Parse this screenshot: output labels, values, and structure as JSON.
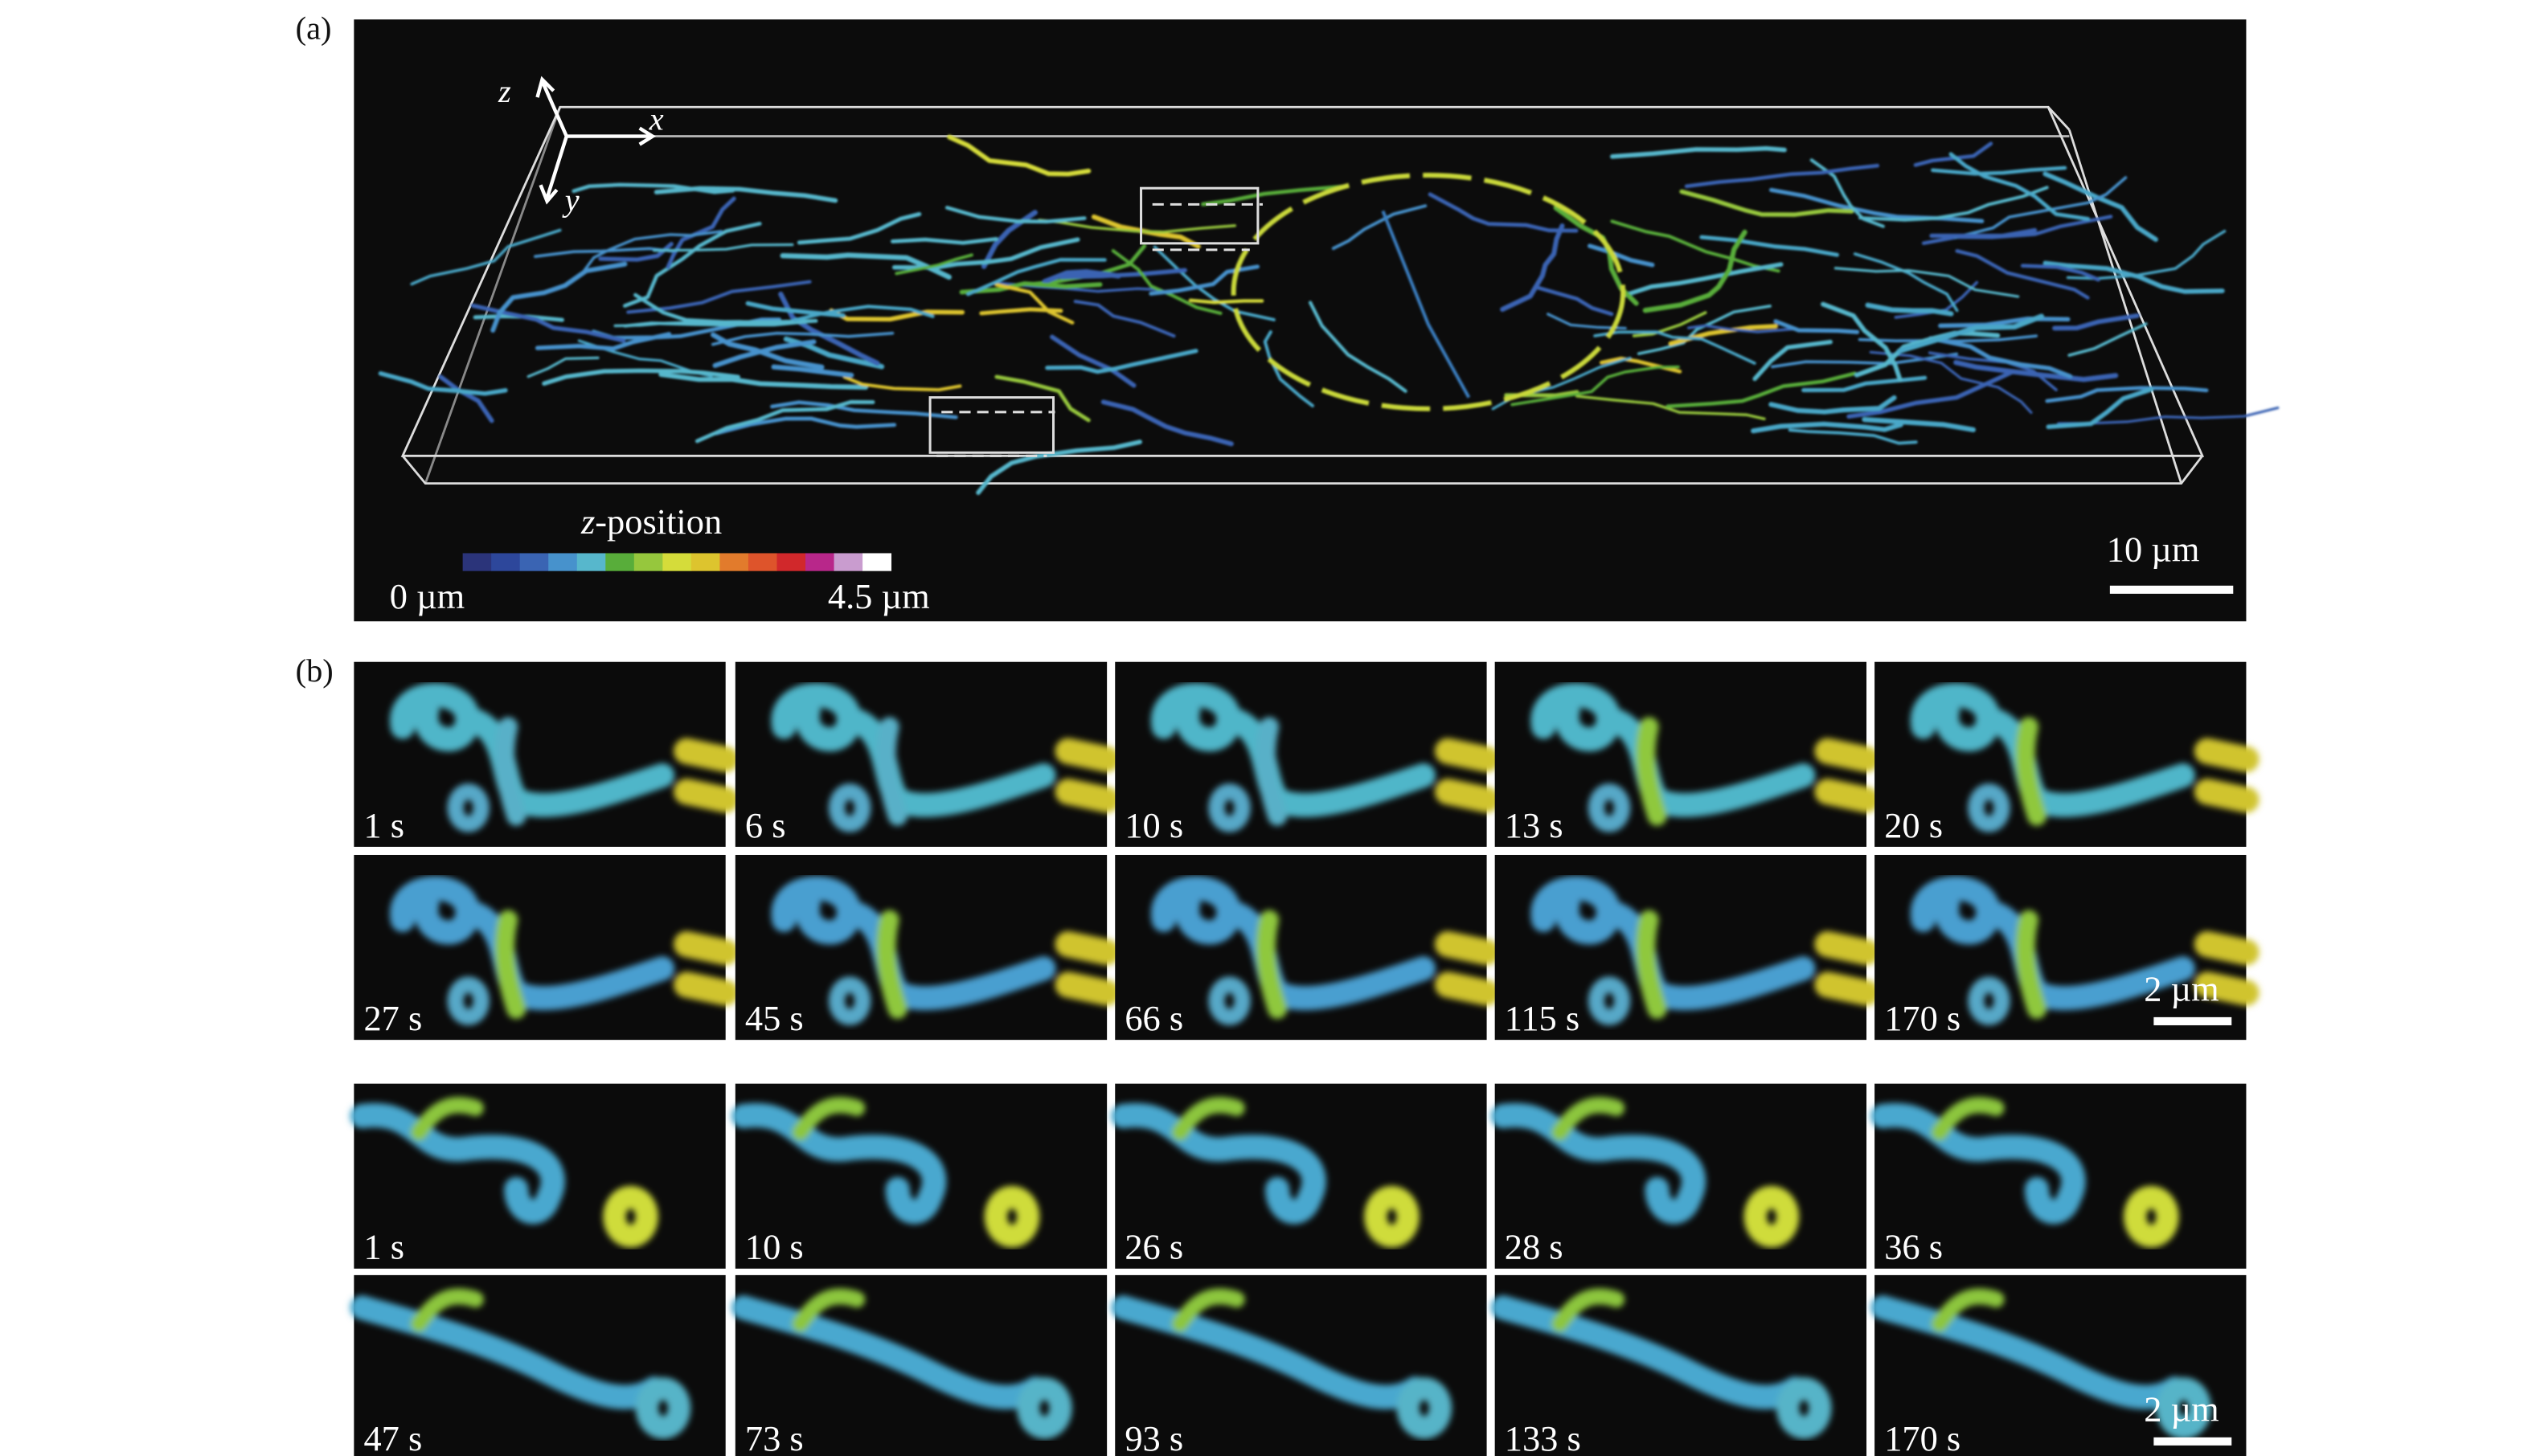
{
  "panel_a": {
    "label": "(a)",
    "axes": {
      "x": "x",
      "y": "y",
      "z": "z"
    },
    "colorbar": {
      "title_italic": "z",
      "title_rest": "-position",
      "min_label": "0 µm",
      "max_label": "4.5 µm",
      "colors": [
        "#2b347a",
        "#2d479b",
        "#3a64b3",
        "#4792cc",
        "#57b7cc",
        "#58ad3a",
        "#96c73d",
        "#d5dc3a",
        "#ddc42e",
        "#e27b2c",
        "#de542b",
        "#d1282b",
        "#b8278a",
        "#c99ccf",
        "#ffffff"
      ]
    },
    "scale_bar": "10 µm"
  },
  "panel_b": {
    "label": "(b)",
    "sequence_1": {
      "times": [
        "1 s",
        "6 s",
        "10 s",
        "13 s",
        "20 s",
        "27 s",
        "45 s",
        "66 s",
        "115 s",
        "170 s"
      ],
      "scale_bar": "2 µm"
    },
    "sequence_2": {
      "times": [
        "1 s",
        "10 s",
        "26 s",
        "28 s",
        "36 s",
        "47 s",
        "73 s",
        "93 s",
        "133 s",
        "170 s"
      ],
      "scale_bar": "2 µm"
    }
  }
}
